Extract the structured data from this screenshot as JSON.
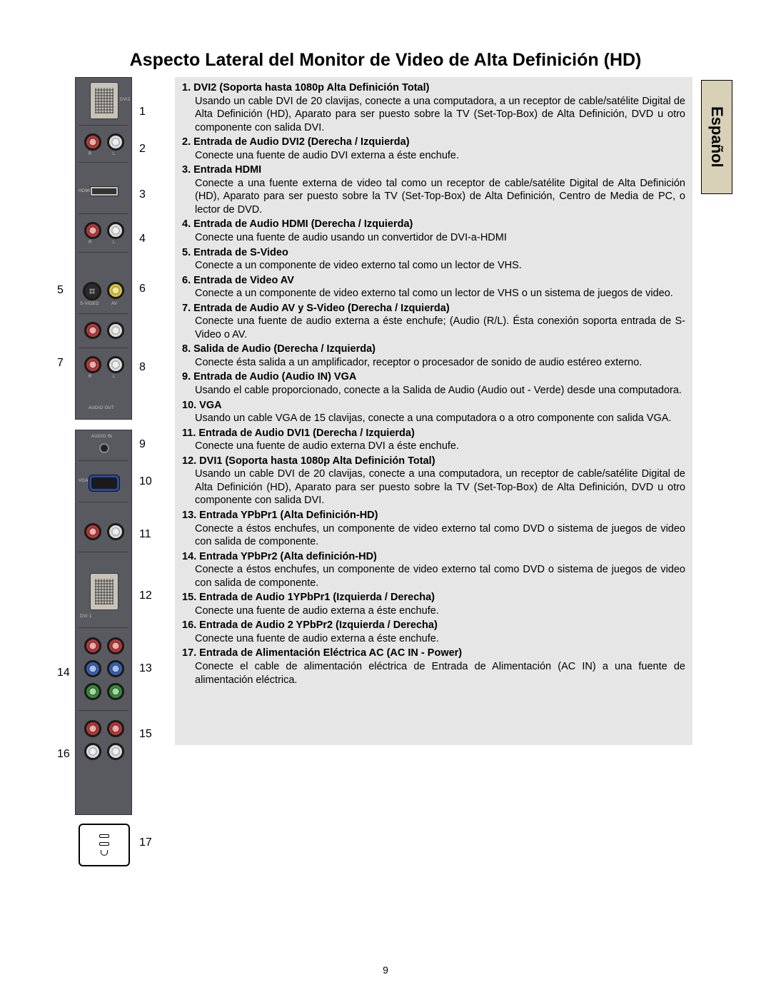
{
  "title": "Aspecto Lateral del Monitor de Video de Alta Definición (HD)",
  "side_tab": "Español",
  "page_number": "9",
  "labels": {
    "n1": "1",
    "n2": "2",
    "n3": "3",
    "n4": "4",
    "n5": "5",
    "n6": "6",
    "n7": "7",
    "n8": "8",
    "n9": "9",
    "n10": "10",
    "n11": "11",
    "n12": "12",
    "n13": "13",
    "n14": "14",
    "n15": "15",
    "n16": "16",
    "n17": "17"
  },
  "items": [
    {
      "t": "1. DVI2 (Soporta hasta 1080p Alta Definición Total)",
      "b": "Usando un cable DVI de 20 clavijas, conecte a una computadora, a un receptor de cable/satélite Digital de Alta Definición (HD), Aparato para ser puesto sobre la TV (Set-Top-Box) de Alta Definición, DVD u otro componente con salida DVI."
    },
    {
      "t": "2. Entrada de Audio DVI2 (Derecha / Izquierda)",
      "b": "Conecte una fuente de audio DVI externa a éste enchufe."
    },
    {
      "t": "3. Entrada HDMI",
      "b": "Conecte a una fuente externa de video tal como un receptor de cable/satélite Digital de Alta Definición (HD), Aparato para ser puesto sobre la TV (Set-Top-Box) de Alta Definición, Centro de Media de PC, o lector de DVD."
    },
    {
      "t": "4. Entrada de Audio HDMI (Derecha / Izquierda)",
      "b": "Conecte una fuente de audio usando un convertidor de DVI-a-HDMI"
    },
    {
      "t": "5. Entrada de S-Video",
      "b": "Conecte a un componente de video externo tal como un lector de VHS."
    },
    {
      "t": "6. Entrada de Video AV",
      "b": "Conecte a un componente de video externo tal como un lector de VHS o un sistema de juegos de video."
    },
    {
      "t": "7. Entrada de Audio AV  y  S-Video (Derecha / Izquierda)",
      "b": "Conecte una fuente de audio externa a éste enchufe; (Audio (R/L). Ésta conexión soporta entrada de S-Video o AV."
    },
    {
      "t": "8. Salida de Audio (Derecha / Izquierda)",
      "b": "Conecte ésta salida a un amplificador, receptor o procesador de sonido de audio estéreo  externo."
    },
    {
      "t": "9. Entrada  de Audio (Audio IN) VGA",
      "b": "Usando el cable proporcionado, conecte a la Salida de Audio (Audio out - Verde) desde una computadora."
    },
    {
      "t": "10. VGA",
      "b": "Usando un cable VGA de 15 clavijas, conecte a una computadora o a otro componente con salida VGA."
    },
    {
      "t": "11. Entrada de Audio DVI1 (Derecha / Izquierda)",
      "b": "Conecte una fuente de audio externa DVI a éste enchufe."
    },
    {
      "t": "12. DVI1 (Soporta hasta 1080p Alta Definición Total)",
      "b": "Usando un cable DVI de 20 clavijas, conecte a una computadora, un receptor de cable/satélite Digital de Alta Definición (HD), Aparato para ser puesto sobre la TV (Set-Top-Box) de Alta Definición, DVD u otro componente con salida DVI."
    },
    {
      "t": "13. Entrada YPbPr1 (Alta Definición-HD)",
      "b": "Conecte a éstos enchufes, un componente de video externo tal como DVD o sistema de juegos de video con salida de componente."
    },
    {
      "t": "14. Entrada YPbPr2 (Alta definición-HD)",
      "b": "Conecte a éstos enchufes, un componente de video externo tal como DVD o sistema de juegos de video con salida de componente."
    },
    {
      "t": "15. Entrada de Audio 1YPbPr1 (Izquierda / Derecha)",
      "b": "Conecte una fuente de audio externa a éste enchufe."
    },
    {
      "t": "16. Entrada de Audio 2 YPbPr2 (Izquierda / Derecha)",
      "b": "Conecte una fuente de audio externa a éste enchufe."
    },
    {
      "t": "17. Entrada de Alimentación Eléctrica AC (AC IN - Power)",
      "b": "Conecte el cable de alimentación eléctrica de Entrada de    Alimentación (AC IN) a una fuente de alimentación eléctrica."
    }
  ],
  "diagram": {
    "panel_bg": "#595960",
    "port_label_color": "#c8c8c8",
    "tinylabels": {
      "dvi2": "DVI2",
      "r": "R",
      "l": "L",
      "hdmi": "HDMI",
      "svideo": "S-VIDEO",
      "av": "AV",
      "audioout": "AUDIO OUT",
      "audioin": "AUDIO IN",
      "vga": "VGA",
      "dvi1": "DVI 1"
    }
  }
}
